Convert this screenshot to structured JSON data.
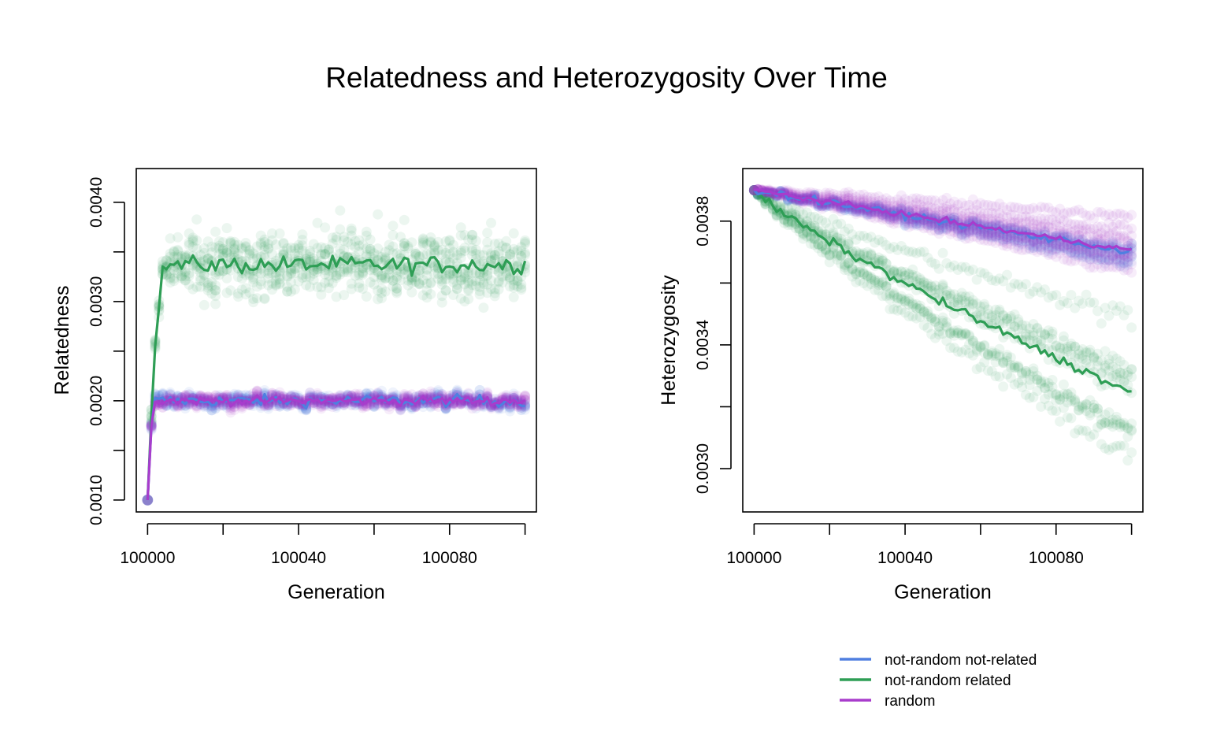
{
  "title": "Relatedness and Heterozygosity Over Time",
  "legend": {
    "placement": "bottom-right",
    "items": [
      {
        "label": "not-random not-related",
        "color": "#4f7fe0"
      },
      {
        "label": "not-random related",
        "color": "#2e9e55"
      },
      {
        "label": "random",
        "color": "#a83ccc"
      }
    ]
  },
  "chart_data": [
    {
      "type": "line",
      "ylabel": "Relatedness",
      "xlabel": "Generation",
      "xlim": [
        99997,
        100103
      ],
      "ylim": [
        0.00088,
        0.00434
      ],
      "xticks": [
        100000,
        100020,
        100040,
        100060,
        100080,
        100100
      ],
      "xtick_labels": [
        "100000",
        "",
        "100040",
        "",
        "100080",
        ""
      ],
      "yticks": [
        0.001,
        0.0015,
        0.002,
        0.0025,
        0.003,
        0.0035,
        0.004
      ],
      "ytick_labels": [
        "0.0010",
        "",
        "0.0020",
        "",
        "0.0030",
        "",
        "0.0040"
      ],
      "grid": false,
      "scatter_note_free": true,
      "series": [
        {
          "name": "not-random not-related",
          "color": "#4f7fe0",
          "start": 0.001,
          "level": 0.002,
          "spread": 4e-05,
          "replicate_spread": 4e-05,
          "rise": 2,
          "trend": 0
        },
        {
          "name": "not-random related",
          "color": "#2e9e55",
          "start": 0.001,
          "level": 0.00337,
          "spread": 6e-05,
          "replicate_spread": 0.00022,
          "rise": 5,
          "trend": 0
        },
        {
          "name": "random",
          "color": "#a83ccc",
          "start": 0.001,
          "level": 0.002,
          "spread": 3e-05,
          "replicate_spread": 4e-05,
          "rise": 2,
          "trend": 0
        }
      ]
    },
    {
      "type": "line",
      "ylabel": "Heterozygosity",
      "xlabel": "Generation",
      "xlim": [
        99997,
        100103
      ],
      "ylim": [
        0.00286,
        0.00397
      ],
      "xticks": [
        100000,
        100020,
        100040,
        100060,
        100080,
        100100
      ],
      "xtick_labels": [
        "100000",
        "",
        "100040",
        "",
        "100080",
        ""
      ],
      "yticks": [
        0.003,
        0.0032,
        0.0034,
        0.0036,
        0.0038
      ],
      "ytick_labels": [
        "0.0030",
        "",
        "0.0034",
        "",
        "0.0038"
      ],
      "grid": false,
      "series": [
        {
          "name": "not-random not-related",
          "color": "#4f7fe0",
          "start": 0.0039,
          "end": 0.0037,
          "spread": 8e-06,
          "replicate_spread": 7e-05
        },
        {
          "name": "not-random related",
          "color": "#2e9e55",
          "start": 0.0039,
          "end": 0.003245,
          "spread": 1e-05,
          "replicate_spread": 0.00028
        },
        {
          "name": "random",
          "color": "#a83ccc",
          "start": 0.0039,
          "end": 0.003705,
          "spread": 6e-06,
          "replicate_spread": 9e-05
        }
      ]
    }
  ]
}
